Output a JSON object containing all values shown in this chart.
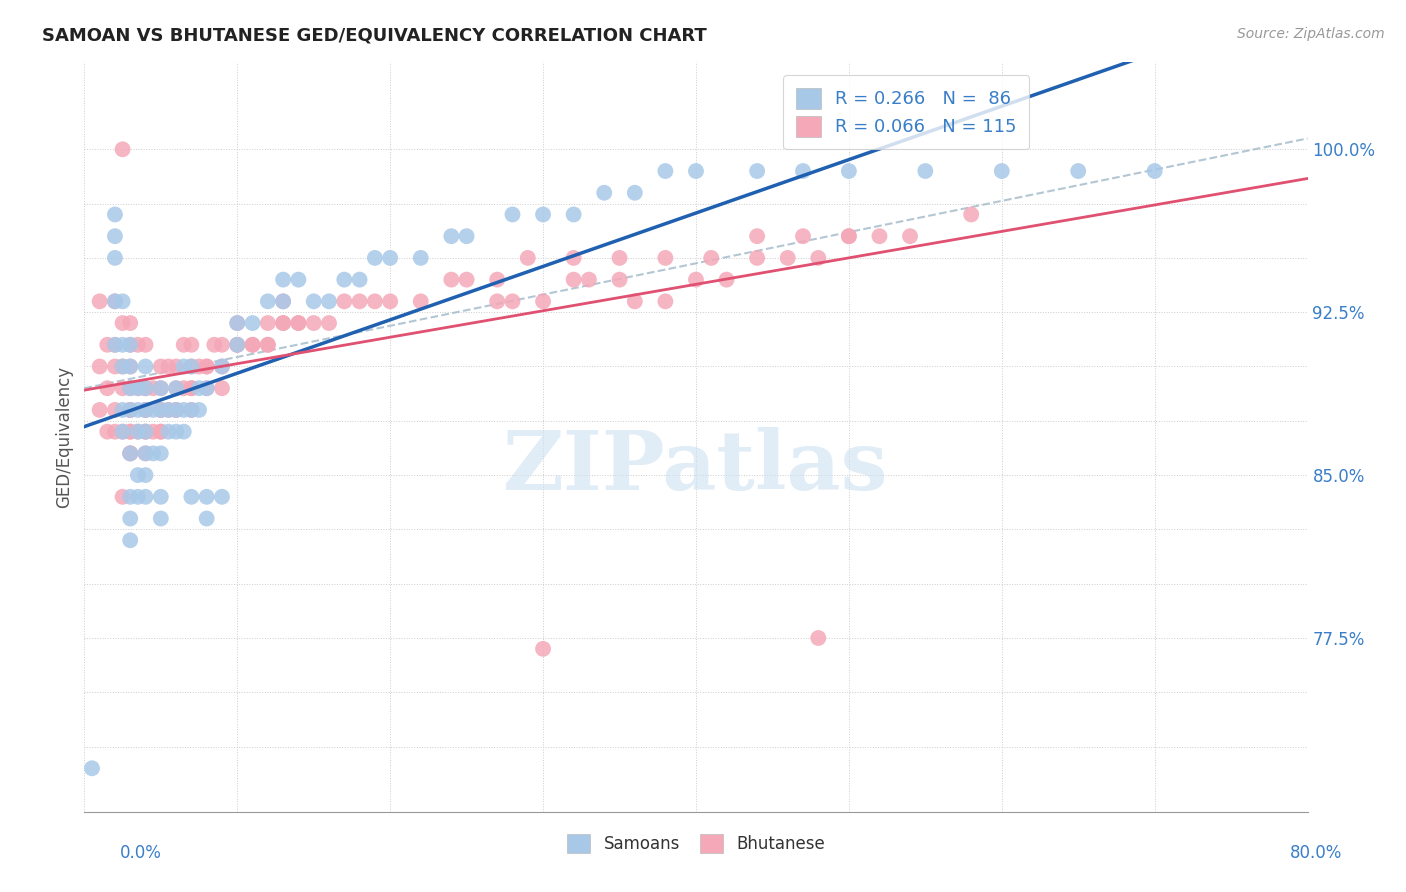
{
  "title": "SAMOAN VS BHUTANESE GED/EQUIVALENCY CORRELATION CHART",
  "source": "Source: ZipAtlas.com",
  "ylabel": "GED/Equivalency",
  "xlim": [
    0.0,
    0.8
  ],
  "ylim": [
    0.695,
    1.04
  ],
  "samoan_color": "#a8c8e8",
  "bhutanese_color": "#f4a8b8",
  "samoan_line_color": "#2060b0",
  "bhutanese_line_color": "#e05070",
  "diag_line_color": "#a0b8c8",
  "watermark": "ZIPatlas",
  "watermark_color": "#cce0f0",
  "samoan_x": [
    0.005,
    0.02,
    0.02,
    0.02,
    0.02,
    0.025,
    0.025,
    0.025,
    0.025,
    0.025,
    0.03,
    0.03,
    0.03,
    0.03,
    0.03,
    0.03,
    0.03,
    0.035,
    0.035,
    0.035,
    0.035,
    0.035,
    0.04,
    0.04,
    0.04,
    0.04,
    0.04,
    0.04,
    0.045,
    0.045,
    0.05,
    0.05,
    0.05,
    0.055,
    0.055,
    0.06,
    0.06,
    0.06,
    0.065,
    0.065,
    0.065,
    0.07,
    0.07,
    0.075,
    0.075,
    0.08,
    0.09,
    0.1,
    0.1,
    0.11,
    0.12,
    0.13,
    0.13,
    0.14,
    0.15,
    0.16,
    0.17,
    0.18,
    0.19,
    0.2,
    0.22,
    0.24,
    0.25,
    0.28,
    0.3,
    0.32,
    0.34,
    0.36,
    0.38,
    0.4,
    0.44,
    0.47,
    0.5,
    0.55,
    0.6,
    0.65,
    0.7,
    0.03,
    0.04,
    0.05,
    0.05,
    0.07,
    0.08,
    0.08,
    0.09,
    0.02
  ],
  "samoan_y": [
    0.715,
    0.91,
    0.93,
    0.95,
    0.97,
    0.87,
    0.88,
    0.9,
    0.91,
    0.93,
    0.82,
    0.84,
    0.86,
    0.88,
    0.89,
    0.9,
    0.91,
    0.84,
    0.85,
    0.87,
    0.88,
    0.89,
    0.85,
    0.86,
    0.87,
    0.88,
    0.89,
    0.9,
    0.86,
    0.88,
    0.86,
    0.88,
    0.89,
    0.87,
    0.88,
    0.87,
    0.88,
    0.89,
    0.87,
    0.88,
    0.9,
    0.88,
    0.9,
    0.88,
    0.89,
    0.89,
    0.9,
    0.91,
    0.92,
    0.92,
    0.93,
    0.93,
    0.94,
    0.94,
    0.93,
    0.93,
    0.94,
    0.94,
    0.95,
    0.95,
    0.95,
    0.96,
    0.96,
    0.97,
    0.97,
    0.97,
    0.98,
    0.98,
    0.99,
    0.99,
    0.99,
    0.99,
    0.99,
    0.99,
    0.99,
    0.99,
    0.99,
    0.83,
    0.84,
    0.83,
    0.84,
    0.84,
    0.83,
    0.84,
    0.84,
    0.96
  ],
  "bhutanese_x": [
    0.01,
    0.01,
    0.01,
    0.015,
    0.015,
    0.015,
    0.02,
    0.02,
    0.02,
    0.02,
    0.02,
    0.025,
    0.025,
    0.025,
    0.025,
    0.025,
    0.03,
    0.03,
    0.03,
    0.03,
    0.03,
    0.03,
    0.03,
    0.035,
    0.035,
    0.035,
    0.04,
    0.04,
    0.04,
    0.04,
    0.04,
    0.045,
    0.045,
    0.05,
    0.05,
    0.05,
    0.055,
    0.055,
    0.06,
    0.06,
    0.065,
    0.065,
    0.07,
    0.07,
    0.075,
    0.08,
    0.085,
    0.09,
    0.1,
    0.1,
    0.11,
    0.12,
    0.12,
    0.13,
    0.13,
    0.14,
    0.15,
    0.16,
    0.17,
    0.18,
    0.19,
    0.2,
    0.22,
    0.24,
    0.25,
    0.27,
    0.29,
    0.32,
    0.35,
    0.38,
    0.41,
    0.44,
    0.47,
    0.5,
    0.54,
    0.58,
    0.025,
    0.03,
    0.03,
    0.03,
    0.04,
    0.04,
    0.04,
    0.05,
    0.05,
    0.05,
    0.06,
    0.06,
    0.07,
    0.07,
    0.07,
    0.08,
    0.08,
    0.09,
    0.09,
    0.1,
    0.11,
    0.12,
    0.13,
    0.14,
    0.27,
    0.28,
    0.3,
    0.32,
    0.33,
    0.35,
    0.36,
    0.38,
    0.4,
    0.42,
    0.44,
    0.46,
    0.48,
    0.5,
    0.52,
    0.3,
    0.48
  ],
  "bhutanese_y": [
    0.88,
    0.9,
    0.93,
    0.87,
    0.89,
    0.91,
    0.87,
    0.88,
    0.9,
    0.91,
    0.93,
    0.84,
    0.87,
    0.89,
    0.9,
    0.92,
    0.86,
    0.87,
    0.88,
    0.89,
    0.9,
    0.91,
    0.92,
    0.87,
    0.89,
    0.91,
    0.86,
    0.87,
    0.88,
    0.89,
    0.91,
    0.87,
    0.89,
    0.87,
    0.88,
    0.9,
    0.88,
    0.9,
    0.88,
    0.9,
    0.89,
    0.91,
    0.89,
    0.91,
    0.9,
    0.9,
    0.91,
    0.91,
    0.91,
    0.92,
    0.91,
    0.91,
    0.92,
    0.92,
    0.93,
    0.92,
    0.92,
    0.92,
    0.93,
    0.93,
    0.93,
    0.93,
    0.93,
    0.94,
    0.94,
    0.94,
    0.95,
    0.95,
    0.95,
    0.95,
    0.95,
    0.96,
    0.96,
    0.96,
    0.96,
    0.97,
    1.0,
    0.86,
    0.87,
    0.88,
    0.87,
    0.88,
    0.89,
    0.87,
    0.88,
    0.89,
    0.88,
    0.89,
    0.88,
    0.89,
    0.9,
    0.89,
    0.9,
    0.89,
    0.9,
    0.91,
    0.91,
    0.91,
    0.92,
    0.92,
    0.93,
    0.93,
    0.93,
    0.94,
    0.94,
    0.94,
    0.93,
    0.93,
    0.94,
    0.94,
    0.95,
    0.95,
    0.95,
    0.96,
    0.96,
    0.77,
    0.775
  ]
}
